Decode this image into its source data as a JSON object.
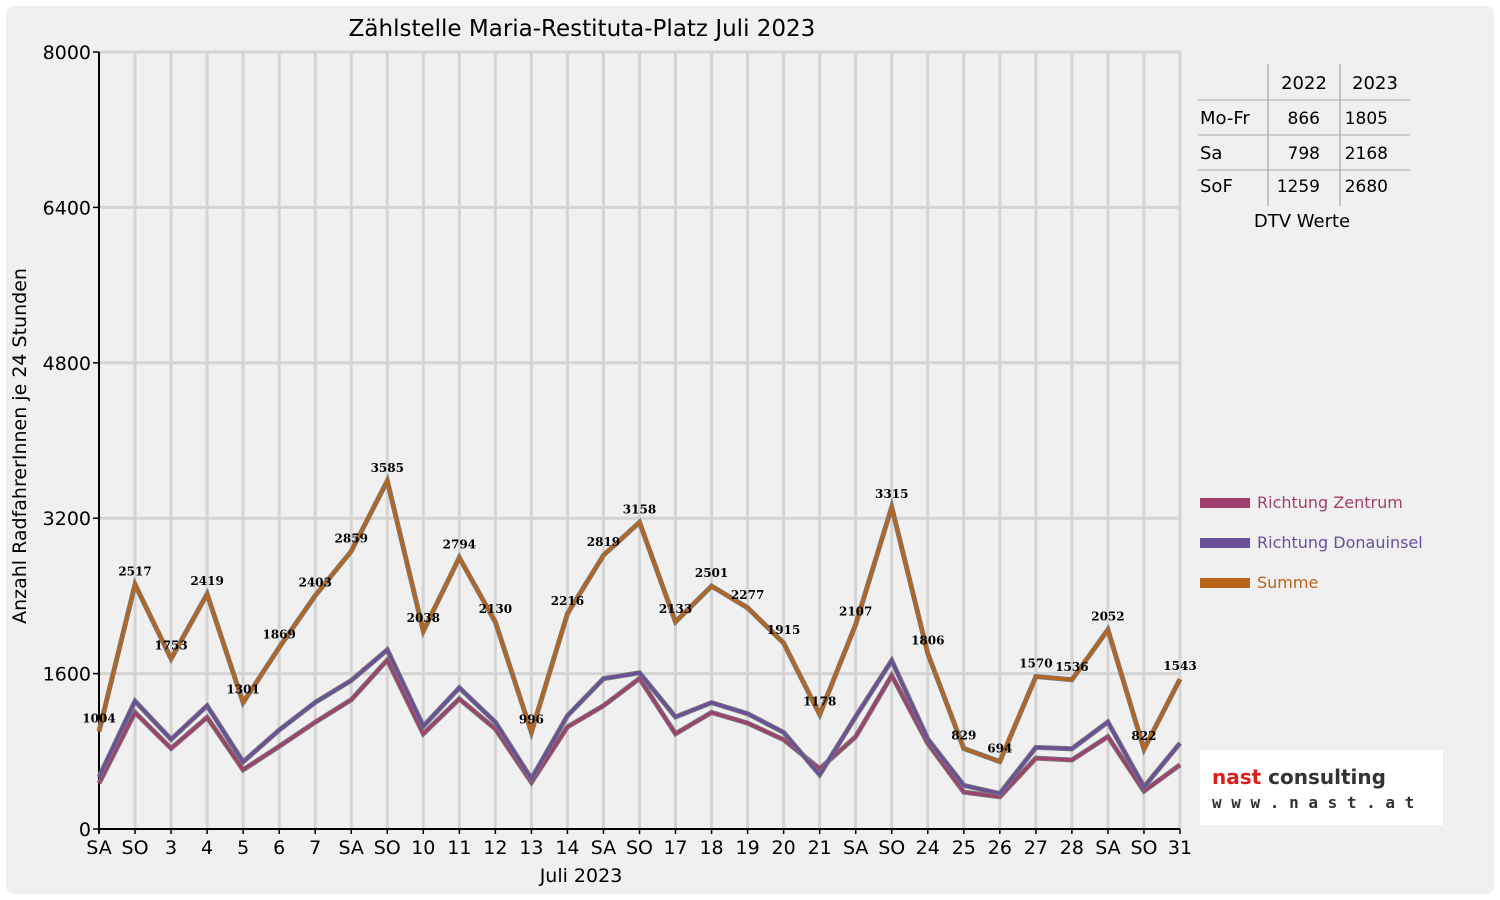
{
  "chart_data": {
    "type": "line",
    "title": "Zählstelle Maria-Restituta-Platz Juli 2023",
    "xlabel": "Juli 2023",
    "ylabel": "Anzahl RadfahrerInnen je 24 Stunden",
    "ylim": [
      0,
      8000
    ],
    "yticks": [
      "0",
      "1600",
      "3200",
      "4800",
      "6400",
      "8000"
    ],
    "ytick_values": [
      0,
      1600,
      3200,
      4800,
      6400,
      8000
    ],
    "grid": true,
    "legend_position": "right",
    "categories": [
      "SA",
      "SO",
      "3",
      "4",
      "5",
      "6",
      "7",
      "SA",
      "SO",
      "10",
      "11",
      "12",
      "13",
      "14",
      "SA",
      "SO",
      "17",
      "18",
      "19",
      "20",
      "21",
      "SA",
      "SO",
      "24",
      "25",
      "26",
      "27",
      "28",
      "SA",
      "SO",
      "31"
    ],
    "highlight_categories": [
      "SO"
    ],
    "highlight_color": "#e00000",
    "series": [
      {
        "name": "Richtung Zentrum",
        "color": "#a0406e",
        "values": [
          470,
          1200,
          830,
          1150,
          610,
          850,
          1100,
          1330,
          1740,
          980,
          1340,
          1030,
          480,
          1050,
          1270,
          1550,
          980,
          1200,
          1090,
          920,
          620,
          950,
          1580,
          880,
          380,
          330,
          730,
          710,
          950,
          390,
          660
        ]
      },
      {
        "name": "Richtung Donauinsel",
        "color": "#6a4f9a",
        "values": [
          534,
          1317,
          923,
          1269,
          691,
          1019,
          1303,
          1529,
          1845,
          1058,
          1454,
          1100,
          516,
          1166,
          1549,
          1608,
          1153,
          1301,
          1187,
          995,
          558,
          1157,
          1735,
          926,
          449,
          364,
          840,
          826,
          1102,
          432,
          883
        ]
      },
      {
        "name": "Summe",
        "color": "#b8651b",
        "values": [
          1004,
          2517,
          1753,
          2419,
          1301,
          1869,
          2403,
          2859,
          3585,
          2038,
          2794,
          2130,
          996,
          2216,
          2819,
          3158,
          2133,
          2501,
          2277,
          1915,
          1178,
          2107,
          3315,
          1806,
          829,
          694,
          1570,
          1536,
          2052,
          822,
          1543
        ]
      }
    ],
    "data_labels": [
      "1004",
      "2517",
      "1753",
      "2419",
      "1301",
      "1869",
      "2403",
      "2859",
      "3585",
      "2038",
      "2794",
      "2130",
      "996",
      "2216",
      "2819",
      "3158",
      "2133",
      "2501",
      "2277",
      "1915",
      "1178",
      "2107",
      "3315",
      "1806",
      "829",
      "694",
      "1570",
      "1536",
      "2052",
      "822",
      "1543"
    ]
  },
  "dtv_table": {
    "headers": [
      "",
      "2022",
      "2023"
    ],
    "rows": [
      {
        "label": "Mo-Fr",
        "v2022": "866",
        "v2023": "1805"
      },
      {
        "label": "Sa",
        "v2022": "798",
        "v2023": "2168"
      },
      {
        "label": "SoF",
        "v2022": "1259",
        "v2023": "2680"
      }
    ],
    "caption": "DTV Werte"
  },
  "logo": {
    "name_part1": "nast",
    "name_part2": " consulting",
    "url": "w w w . n a s t . a t",
    "color_part1": "#d9201c",
    "color_part2": "#333333"
  }
}
